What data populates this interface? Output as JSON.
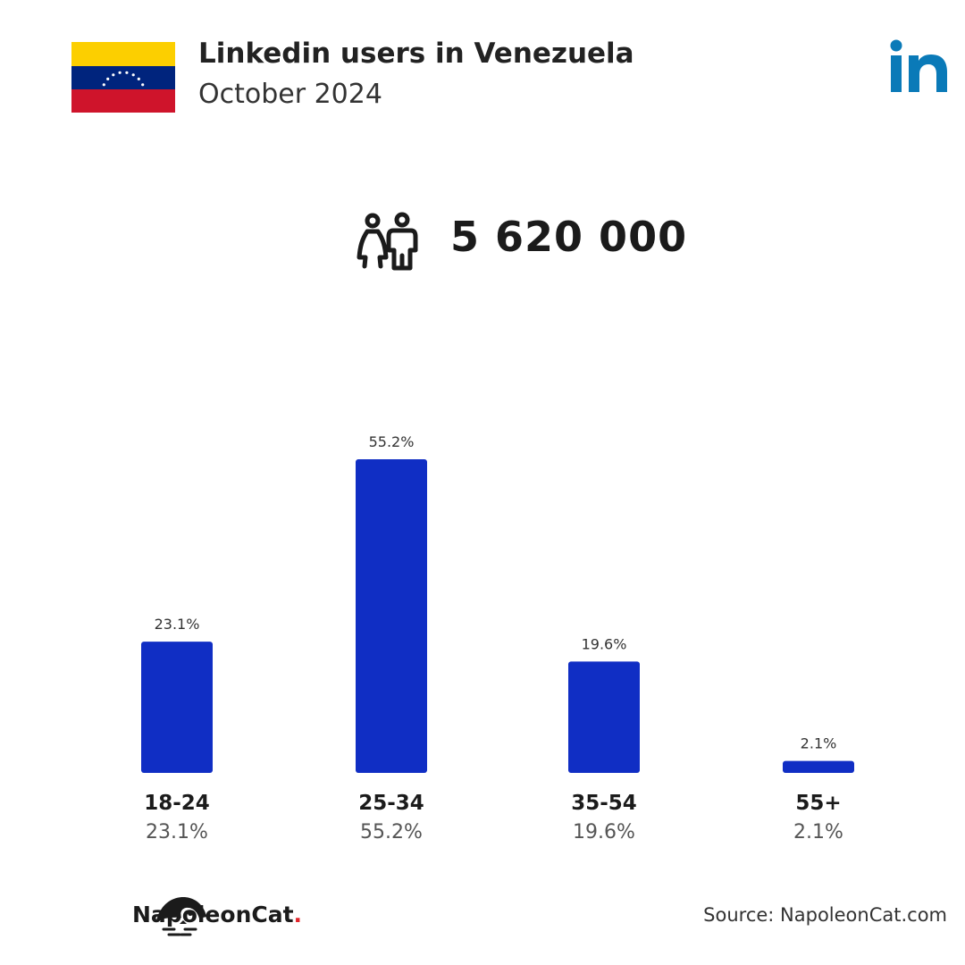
{
  "header": {
    "title": "Linkedin users in Venezuela",
    "subtitle": "October 2024"
  },
  "total_users": "5 620 000",
  "colors": {
    "bar": "#102ec4",
    "linkedin": "#0a7ab8",
    "flag_yellow": "#fccf00",
    "flag_blue": "#00247d",
    "flag_red": "#cf142b"
  },
  "chart_data": {
    "type": "bar",
    "categories": [
      "18-24",
      "25-34",
      "35-54",
      "55+"
    ],
    "values": [
      23.1,
      55.2,
      19.6,
      2.1
    ],
    "value_labels": [
      "23.1%",
      "55.2%",
      "19.6%",
      "2.1%"
    ],
    "ylim": [
      0,
      55.2
    ],
    "grid": false
  },
  "footer": {
    "brand_name": "NapoleonCat",
    "brand_dot": ".",
    "source": "Source: NapoleonCat.com"
  }
}
